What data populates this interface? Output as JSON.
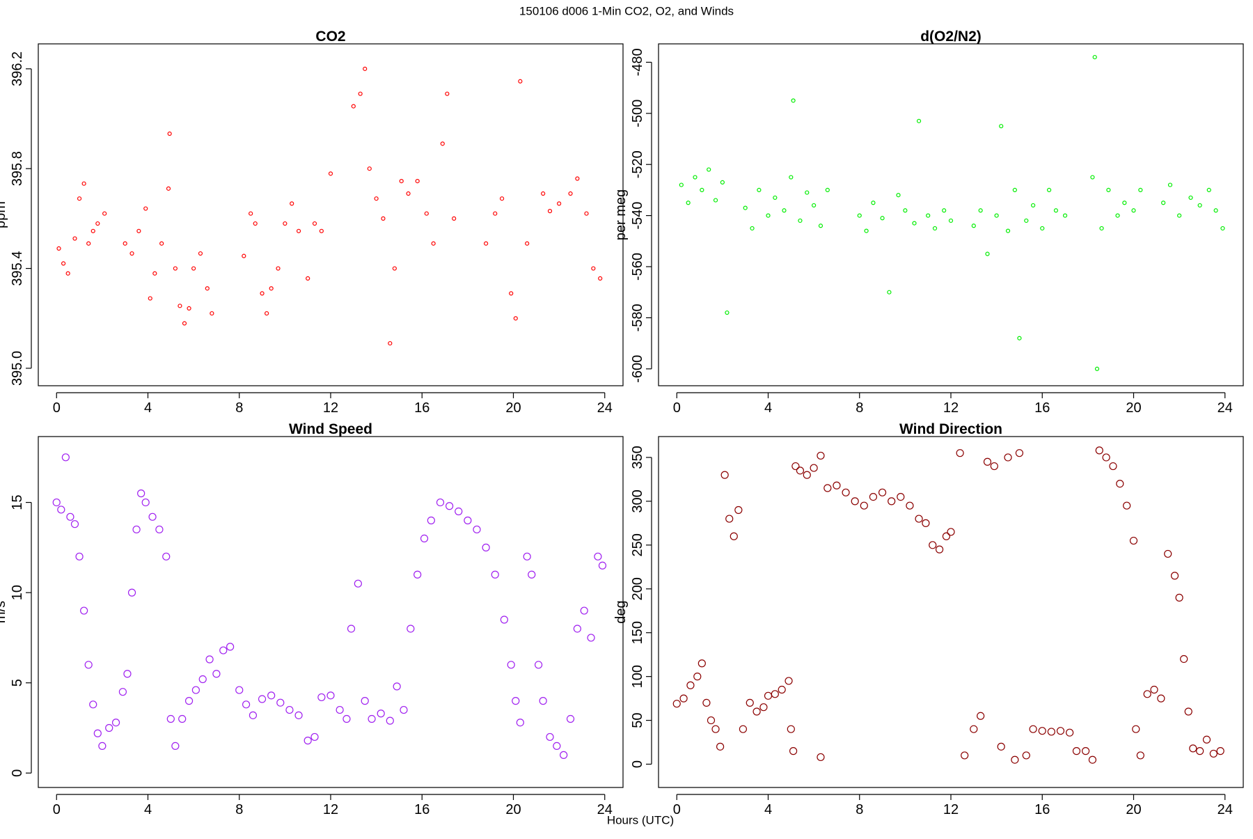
{
  "title": "150106   d006   1-Min CO2, O2, and Winds",
  "xlabel": "Hours (UTC)",
  "chart_data": [
    {
      "type": "scatter",
      "title": "CO2",
      "ylabel": "ppm",
      "color": "#ff0000",
      "xlim": [
        -0.8,
        24.8
      ],
      "ylim": [
        394.93,
        396.3
      ],
      "xticks": [
        0,
        4,
        8,
        12,
        16,
        20,
        24
      ],
      "yticks": [
        {
          "value": 395,
          "label": "395.0"
        },
        395.4,
        395.8,
        396.2
      ],
      "x": [
        0.1,
        0.3,
        0.5,
        0.8,
        1.0,
        1.2,
        1.4,
        1.6,
        1.8,
        2.1,
        3.0,
        3.3,
        3.6,
        3.9,
        4.1,
        4.3,
        4.6,
        4.9,
        4.95,
        5.2,
        5.4,
        5.6,
        5.8,
        6.0,
        6.3,
        6.6,
        6.8,
        8.2,
        8.5,
        8.7,
        9.0,
        9.2,
        9.4,
        9.7,
        10.0,
        10.3,
        10.6,
        11.0,
        11.3,
        11.6,
        12.0,
        13.0,
        13.3,
        13.5,
        13.7,
        14.0,
        14.3,
        14.6,
        14.8,
        15.1,
        15.4,
        15.8,
        16.2,
        16.5,
        16.9,
        17.1,
        17.4,
        18.8,
        19.2,
        19.5,
        19.9,
        20.1,
        20.3,
        20.6,
        21.3,
        21.6,
        22.0,
        22.5,
        22.8,
        23.2,
        23.5,
        23.8
      ],
      "values": [
        395.48,
        395.42,
        395.38,
        395.52,
        395.68,
        395.74,
        395.5,
        395.55,
        395.58,
        395.62,
        395.5,
        395.46,
        395.55,
        395.64,
        395.28,
        395.38,
        395.5,
        395.72,
        395.94,
        395.4,
        395.25,
        395.18,
        395.24,
        395.4,
        395.46,
        395.32,
        395.22,
        395.45,
        395.62,
        395.58,
        395.3,
        395.22,
        395.32,
        395.4,
        395.58,
        395.66,
        395.55,
        395.36,
        395.58,
        395.55,
        395.78,
        396.05,
        396.1,
        396.2,
        395.8,
        395.68,
        395.6,
        395.1,
        395.4,
        395.75,
        395.7,
        395.75,
        395.62,
        395.5,
        395.9,
        396.1,
        395.6,
        395.5,
        395.62,
        395.68,
        395.3,
        395.2,
        396.15,
        395.5,
        395.7,
        395.63,
        395.66,
        395.7,
        395.76,
        395.62,
        395.4,
        395.36
      ]
    },
    {
      "type": "scatter",
      "title": "d(O2/N2)",
      "ylabel": "per meg",
      "color": "#00ee00",
      "xlim": [
        -0.8,
        24.8
      ],
      "ylim": [
        -606.6,
        -472.8
      ],
      "xticks": [
        0,
        4,
        8,
        12,
        16,
        20,
        24
      ],
      "yticks": [
        -600,
        -580,
        -560,
        -540,
        -520,
        -500,
        -480
      ],
      "x": [
        0.2,
        0.5,
        0.8,
        1.1,
        1.4,
        1.7,
        2.0,
        2.2,
        3.0,
        3.3,
        3.6,
        4.0,
        4.3,
        4.7,
        5.0,
        5.1,
        5.4,
        5.7,
        6.0,
        6.3,
        6.6,
        8.0,
        8.3,
        8.6,
        9.0,
        9.3,
        9.7,
        10.0,
        10.4,
        10.6,
        11.0,
        11.3,
        11.7,
        12.0,
        13.0,
        13.3,
        13.6,
        14.0,
        14.2,
        14.5,
        14.8,
        15.0,
        15.3,
        15.6,
        16.0,
        16.3,
        16.6,
        17.0,
        18.2,
        18.3,
        18.4,
        18.6,
        18.9,
        19.3,
        19.6,
        20.0,
        20.3,
        21.3,
        21.6,
        22.0,
        22.5,
        22.9,
        23.3,
        23.6,
        23.9
      ],
      "values": [
        -528,
        -535,
        -525,
        -530,
        -522,
        -534,
        -527,
        -578,
        -537,
        -545,
        -530,
        -540,
        -533,
        -538,
        -525,
        -495,
        -542,
        -531,
        -536,
        -544,
        -530,
        -540,
        -546,
        -535,
        -541,
        -570,
        -532,
        -538,
        -543,
        -503,
        -540,
        -545,
        -538,
        -542,
        -544,
        -538,
        -555,
        -540,
        -505,
        -546,
        -530,
        -588,
        -542,
        -536,
        -545,
        -530,
        -538,
        -540,
        -525,
        -478,
        -600,
        -545,
        -530,
        -540,
        -535,
        -538,
        -530,
        -535,
        -528,
        -540,
        -533,
        -536,
        -530,
        -538,
        -545
      ]
    },
    {
      "type": "scatter",
      "title": "Wind Speed",
      "ylabel": "m/s",
      "color": "#a020f0",
      "xlim": [
        -0.8,
        24.8
      ],
      "ylim": [
        -0.8,
        18.65
      ],
      "xticks": [
        0,
        4,
        8,
        12,
        16,
        20,
        24
      ],
      "yticks": [
        0,
        5,
        10,
        15
      ],
      "x": [
        0.0,
        0.2,
        0.4,
        0.6,
        0.8,
        1.0,
        1.2,
        1.4,
        1.6,
        1.8,
        2.0,
        2.3,
        2.6,
        2.9,
        3.1,
        3.3,
        3.5,
        3.7,
        3.9,
        4.2,
        4.5,
        4.8,
        5.0,
        5.2,
        5.5,
        5.8,
        6.1,
        6.4,
        6.7,
        7.0,
        7.3,
        7.6,
        8.0,
        8.3,
        8.6,
        9.0,
        9.4,
        9.8,
        10.2,
        10.6,
        11.0,
        11.3,
        11.6,
        12.0,
        12.4,
        12.7,
        12.9,
        13.2,
        13.5,
        13.8,
        14.2,
        14.6,
        14.9,
        15.2,
        15.5,
        15.8,
        16.1,
        16.4,
        16.8,
        17.2,
        17.6,
        18.0,
        18.4,
        18.8,
        19.2,
        19.6,
        19.9,
        20.1,
        20.3,
        20.6,
        20.8,
        21.1,
        21.3,
        21.6,
        21.9,
        22.2,
        22.5,
        22.8,
        23.1,
        23.4,
        23.7,
        23.9
      ],
      "values": [
        15,
        14.6,
        17.5,
        14.2,
        13.8,
        12,
        9,
        6,
        3.8,
        2.2,
        1.5,
        2.5,
        2.8,
        4.5,
        5.5,
        10,
        13.5,
        15.5,
        15,
        14.2,
        13.5,
        12,
        3,
        1.5,
        3,
        4,
        4.6,
        5.2,
        6.3,
        5.5,
        6.8,
        7,
        4.6,
        3.8,
        3.2,
        4.1,
        4.3,
        3.9,
        3.5,
        3.2,
        1.8,
        2,
        4.2,
        4.3,
        3.5,
        3,
        8,
        10.5,
        4,
        3,
        3.3,
        2.9,
        4.8,
        3.5,
        8,
        11,
        13,
        14,
        15,
        14.8,
        14.5,
        14,
        13.5,
        12.5,
        11,
        8.5,
        6,
        4,
        2.8,
        12,
        11,
        6,
        4,
        2,
        1.5,
        1,
        3,
        8,
        9,
        7.5,
        12,
        11.5
      ]
    },
    {
      "type": "scatter",
      "title": "Wind Direction",
      "ylabel": "deg",
      "color": "#8b0000",
      "xlim": [
        -0.8,
        24.8
      ],
      "ylim": [
        -26.6,
        373.8
      ],
      "xticks": [
        0,
        4,
        8,
        12,
        16,
        20,
        24
      ],
      "yticks": [
        0,
        50,
        100,
        150,
        200,
        250,
        300,
        350
      ],
      "x": [
        0.0,
        0.3,
        0.6,
        0.9,
        1.1,
        1.3,
        1.5,
        1.7,
        1.9,
        2.1,
        2.3,
        2.5,
        2.7,
        2.9,
        3.2,
        3.5,
        3.8,
        4.0,
        4.3,
        4.6,
        4.9,
        5.0,
        5.1,
        5.2,
        5.4,
        5.7,
        6.0,
        6.3,
        6.3,
        6.6,
        7.0,
        7.4,
        7.8,
        8.2,
        8.6,
        9.0,
        9.4,
        9.8,
        10.2,
        10.6,
        10.9,
        11.2,
        11.5,
        11.8,
        12.0,
        12.4,
        12.6,
        13.0,
        13.3,
        13.6,
        13.9,
        14.2,
        14.5,
        14.8,
        15.0,
        15.3,
        15.6,
        16.0,
        16.4,
        16.8,
        17.2,
        17.5,
        17.9,
        18.2,
        18.5,
        18.8,
        19.1,
        19.4,
        19.7,
        20.0,
        20.1,
        20.3,
        20.6,
        20.9,
        21.2,
        21.5,
        21.8,
        22.0,
        22.2,
        22.4,
        22.6,
        22.9,
        23.2,
        23.5,
        23.8
      ],
      "values": [
        69,
        75,
        90,
        100,
        115,
        70,
        50,
        40,
        20,
        330,
        280,
        260,
        290,
        40,
        70,
        60,
        65,
        78,
        80,
        85,
        95,
        40,
        15,
        340,
        335,
        330,
        338,
        352,
        8,
        315,
        318,
        310,
        300,
        295,
        305,
        310,
        300,
        305,
        295,
        280,
        275,
        250,
        245,
        260,
        265,
        355,
        10,
        40,
        55,
        345,
        340,
        20,
        350,
        5,
        355,
        10,
        40,
        38,
        37,
        38,
        36,
        15,
        15,
        5,
        358,
        350,
        340,
        320,
        295,
        255,
        40,
        10,
        80,
        85,
        75,
        240,
        215,
        190,
        120,
        60,
        18,
        15,
        28,
        12,
        15
      ]
    }
  ]
}
